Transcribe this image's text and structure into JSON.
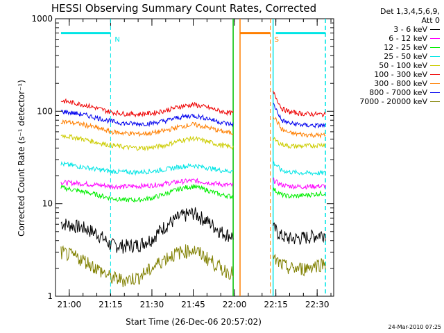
{
  "header": {
    "title": "HESSI Observing Summary Count Rates, Corrected"
  },
  "legend": {
    "heading_line1": "Det 1,3,4,5,6,9,",
    "heading_line2": "Att 0"
  },
  "footer": {
    "stamp": "24-Mar-2010 07:25"
  },
  "chart_data": {
    "type": "line",
    "title": "HESSI Observing Summary Count Rates, Corrected",
    "xlabel": "Start Time (26-Dec-06 20:57:02)",
    "ylabel": "Corrected Count Rate (s⁻¹ detector⁻¹)",
    "y_scale": "log",
    "ylim": [
      1,
      1000
    ],
    "xlim": [
      "20:55",
      "22:36"
    ],
    "x_ticks": [
      "21:00",
      "21:15",
      "21:30",
      "21:45",
      "22:00",
      "22:15",
      "22:30"
    ],
    "y_ticks": [
      "1",
      "10",
      "100",
      "1000"
    ],
    "grid": false,
    "legend_position": "right",
    "annotations": [
      {
        "label": "N",
        "color": "#00e5e5",
        "span": [
          "20:57",
          "21:15"
        ],
        "line_at": "21:15",
        "style": "dashed"
      },
      {
        "label": "S",
        "color": "#ff7f00",
        "span": [
          "22:02",
          "22:13"
        ],
        "line_at": "22:13",
        "style": "dashed"
      }
    ],
    "observing_lines": [
      {
        "time": "21:59:30",
        "color": "#00c000"
      },
      {
        "time": "22:02",
        "color": "#ff7f00"
      },
      {
        "time": "22:14",
        "color": "#00e5e5"
      },
      {
        "time": "22:33",
        "color": "#00e5e5",
        "style": "dashed"
      }
    ],
    "gap": [
      "21:59:30",
      "22:14"
    ],
    "x": [
      "20:57",
      "21:05",
      "21:10",
      "21:15",
      "21:20",
      "21:25",
      "21:30",
      "21:35",
      "21:40",
      "21:45",
      "21:50",
      "21:55",
      "21:59",
      "22:14",
      "22:17",
      "22:20",
      "22:25",
      "22:30",
      "22:33"
    ],
    "series": [
      {
        "name": "3 - 6 keV",
        "color": "#000000",
        "values": [
          6.2,
          5.5,
          4.8,
          3.6,
          3.5,
          3.6,
          4.2,
          5.8,
          7.2,
          8.0,
          6.5,
          5.0,
          4.5,
          5.5,
          4.5,
          4.2,
          4.3,
          4.6,
          4.8
        ]
      },
      {
        "name": "6 - 12 keV",
        "color": "#ff00ff",
        "values": [
          17,
          16.5,
          16,
          15.5,
          15.3,
          15.5,
          15.8,
          16.5,
          17.3,
          17.8,
          17.0,
          16.2,
          15.8,
          18,
          16,
          15.5,
          15.3,
          15.5,
          15.5
        ]
      },
      {
        "name": "12 - 25 keV",
        "color": "#00ee00",
        "values": [
          15,
          13.5,
          12.5,
          11.5,
          11.0,
          11.0,
          11.5,
          12.8,
          14.5,
          15.5,
          14.0,
          12.5,
          12.0,
          14.5,
          12.5,
          12.0,
          12.3,
          12.8,
          13.0
        ]
      },
      {
        "name": "25 - 50 keV",
        "color": "#00e5e5",
        "values": [
          27,
          25,
          23.5,
          22.5,
          22,
          22,
          22.5,
          23.5,
          25,
          26,
          24.5,
          23,
          22.5,
          28,
          23,
          22,
          21.5,
          21.5,
          21.5
        ]
      },
      {
        "name": "50 - 100 keV",
        "color": "#cccc00",
        "values": [
          55,
          50,
          46,
          43,
          41,
          40,
          40.5,
          43,
          48,
          51,
          47,
          43,
          41,
          50,
          44,
          42,
          42,
          43,
          44
        ]
      },
      {
        "name": "100 - 300 keV",
        "color": "#ee0000",
        "values": [
          130,
          118,
          108,
          98,
          94,
          93,
          95,
          102,
          112,
          118,
          110,
          100,
          95,
          160,
          108,
          98,
          94,
          93,
          92
        ]
      },
      {
        "name": "300 - 800 keV",
        "color": "#ff7f00",
        "values": [
          78,
          72,
          66,
          60,
          58,
          57,
          58,
          62,
          68,
          72,
          67,
          61,
          58,
          90,
          64,
          58,
          56,
          55,
          55
        ]
      },
      {
        "name": "800 - 7000 keV",
        "color": "#0000ee",
        "values": [
          100,
          92,
          85,
          78,
          74,
          73,
          74,
          79,
          86,
          90,
          84,
          76,
          72,
          120,
          80,
          74,
          71,
          70,
          70
        ]
      },
      {
        "name": "7000 - 20000 keV",
        "color": "#808000",
        "values": [
          3.0,
          2.5,
          2.0,
          1.6,
          1.5,
          1.6,
          2.0,
          2.6,
          3.0,
          3.2,
          2.6,
          2.0,
          1.8,
          2.5,
          2.2,
          2.0,
          2.0,
          2.2,
          2.3
        ]
      }
    ]
  }
}
